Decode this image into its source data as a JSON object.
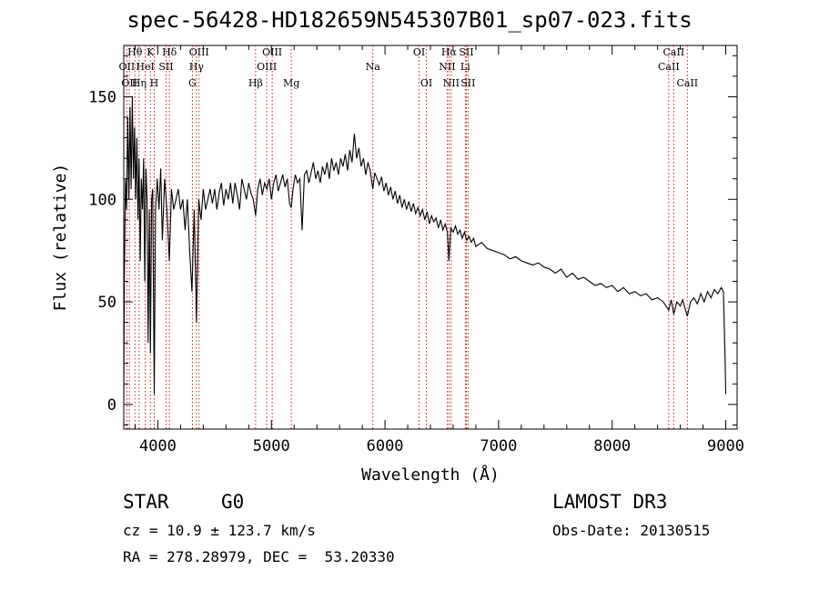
{
  "title": "spec-56428-HD182659N545307B01_sp07-023.fits",
  "info": {
    "class_label": "STAR",
    "subclass": "G0",
    "survey": "LAMOST DR3",
    "cz": "cz = 10.9 ± 123.7 km/s",
    "obs_date": "Obs-Date: 20130515",
    "coords": "RA = 278.28979, DEC =  53.20330"
  },
  "colors": {
    "line_markers": "#cc0000",
    "spectrum": "#000000",
    "axis": "#000000"
  },
  "chart_data": {
    "type": "line",
    "xlabel": "Wavelength (Å)",
    "ylabel": "Flux (relative)",
    "xlim": [
      3700,
      9100
    ],
    "ylim": [
      -12,
      175
    ],
    "xticks": [
      4000,
      5000,
      6000,
      7000,
      8000,
      9000
    ],
    "yticks": [
      0,
      50,
      100,
      150
    ],
    "series": [
      {
        "name": "flux",
        "points": [
          [
            3700,
            2
          ],
          [
            3705,
            60
          ],
          [
            3715,
            110
          ],
          [
            3725,
            95
          ],
          [
            3735,
            140
          ],
          [
            3745,
            100
          ],
          [
            3755,
            145
          ],
          [
            3765,
            105
          ],
          [
            3775,
            150
          ],
          [
            3785,
            110
          ],
          [
            3795,
            135
          ],
          [
            3805,
            100
          ],
          [
            3815,
            130
          ],
          [
            3825,
            90
          ],
          [
            3835,
            120
          ],
          [
            3845,
            70
          ],
          [
            3855,
            110
          ],
          [
            3865,
            95
          ],
          [
            3875,
            120
          ],
          [
            3885,
            60
          ],
          [
            3895,
            115
          ],
          [
            3905,
            100
          ],
          [
            3915,
            30
          ],
          [
            3925,
            95
          ],
          [
            3935,
            25
          ],
          [
            3945,
            100
          ],
          [
            3955,
            105
          ],
          [
            3968,
            5
          ],
          [
            3980,
            95
          ],
          [
            3995,
            110
          ],
          [
            4010,
            95
          ],
          [
            4025,
            115
          ],
          [
            4040,
            80
          ],
          [
            4060,
            110
          ],
          [
            4080,
            95
          ],
          [
            4101,
            70
          ],
          [
            4120,
            105
          ],
          [
            4140,
            95
          ],
          [
            4160,
            100
          ],
          [
            4180,
            105
          ],
          [
            4200,
            95
          ],
          [
            4220,
            100
          ],
          [
            4240,
            85
          ],
          [
            4260,
            100
          ],
          [
            4280,
            75
          ],
          [
            4300,
            55
          ],
          [
            4320,
            95
          ],
          [
            4340,
            40
          ],
          [
            4360,
            100
          ],
          [
            4380,
            90
          ],
          [
            4400,
            105
          ],
          [
            4420,
            95
          ],
          [
            4440,
            100
          ],
          [
            4460,
            105
          ],
          [
            4480,
            98
          ],
          [
            4500,
            105
          ],
          [
            4520,
            95
          ],
          [
            4540,
            103
          ],
          [
            4560,
            108
          ],
          [
            4580,
            97
          ],
          [
            4600,
            105
          ],
          [
            4620,
            100
          ],
          [
            4640,
            108
          ],
          [
            4660,
            98
          ],
          [
            4680,
            108
          ],
          [
            4700,
            102
          ],
          [
            4720,
            95
          ],
          [
            4740,
            110
          ],
          [
            4760,
            105
          ],
          [
            4780,
            100
          ],
          [
            4800,
            108
          ],
          [
            4820,
            103
          ],
          [
            4840,
            100
          ],
          [
            4861,
            92
          ],
          [
            4880,
            105
          ],
          [
            4900,
            110
          ],
          [
            4920,
            102
          ],
          [
            4940,
            108
          ],
          [
            4960,
            105
          ],
          [
            4980,
            110
          ],
          [
            5000,
            100
          ],
          [
            5020,
            108
          ],
          [
            5040,
            112
          ],
          [
            5060,
            104
          ],
          [
            5080,
            108
          ],
          [
            5100,
            112
          ],
          [
            5120,
            106
          ],
          [
            5140,
            110
          ],
          [
            5160,
            98
          ],
          [
            5175,
            96
          ],
          [
            5190,
            105
          ],
          [
            5210,
            112
          ],
          [
            5230,
            108
          ],
          [
            5250,
            110
          ],
          [
            5270,
            85
          ],
          [
            5290,
            112
          ],
          [
            5310,
            114
          ],
          [
            5330,
            108
          ],
          [
            5350,
            113
          ],
          [
            5370,
            118
          ],
          [
            5390,
            110
          ],
          [
            5410,
            114
          ],
          [
            5430,
            108
          ],
          [
            5450,
            116
          ],
          [
            5470,
            112
          ],
          [
            5490,
            118
          ],
          [
            5510,
            110
          ],
          [
            5530,
            120
          ],
          [
            5550,
            114
          ],
          [
            5570,
            118
          ],
          [
            5590,
            112
          ],
          [
            5610,
            120
          ],
          [
            5630,
            116
          ],
          [
            5650,
            122
          ],
          [
            5670,
            114
          ],
          [
            5690,
            124
          ],
          [
            5710,
            118
          ],
          [
            5730,
            132
          ],
          [
            5750,
            120
          ],
          [
            5770,
            125
          ],
          [
            5790,
            116
          ],
          [
            5810,
            120
          ],
          [
            5830,
            112
          ],
          [
            5850,
            118
          ],
          [
            5870,
            114
          ],
          [
            5893,
            105
          ],
          [
            5910,
            113
          ],
          [
            5930,
            110
          ],
          [
            5950,
            107
          ],
          [
            5970,
            111
          ],
          [
            5990,
            104
          ],
          [
            6010,
            108
          ],
          [
            6030,
            102
          ],
          [
            6050,
            106
          ],
          [
            6070,
            100
          ],
          [
            6090,
            104
          ],
          [
            6110,
            98
          ],
          [
            6130,
            102
          ],
          [
            6150,
            96
          ],
          [
            6170,
            100
          ],
          [
            6190,
            95
          ],
          [
            6210,
            99
          ],
          [
            6230,
            94
          ],
          [
            6250,
            98
          ],
          [
            6270,
            93
          ],
          [
            6290,
            96
          ],
          [
            6310,
            92
          ],
          [
            6330,
            95
          ],
          [
            6350,
            90
          ],
          [
            6370,
            94
          ],
          [
            6390,
            88
          ],
          [
            6410,
            92
          ],
          [
            6430,
            89
          ],
          [
            6450,
            91
          ],
          [
            6470,
            86
          ],
          [
            6490,
            90
          ],
          [
            6510,
            85
          ],
          [
            6530,
            88
          ],
          [
            6550,
            84
          ],
          [
            6563,
            70
          ],
          [
            6580,
            86
          ],
          [
            6600,
            84
          ],
          [
            6620,
            87
          ],
          [
            6640,
            83
          ],
          [
            6660,
            85
          ],
          [
            6680,
            81
          ],
          [
            6700,
            84
          ],
          [
            6720,
            80
          ],
          [
            6740,
            82
          ],
          [
            6760,
            79
          ],
          [
            6780,
            81
          ],
          [
            6800,
            77
          ],
          [
            6850,
            79
          ],
          [
            6900,
            76
          ],
          [
            6950,
            75
          ],
          [
            7000,
            74
          ],
          [
            7050,
            73
          ],
          [
            7100,
            71
          ],
          [
            7150,
            72
          ],
          [
            7200,
            70
          ],
          [
            7250,
            69
          ],
          [
            7300,
            68
          ],
          [
            7350,
            69
          ],
          [
            7400,
            67
          ],
          [
            7450,
            66
          ],
          [
            7500,
            64
          ],
          [
            7550,
            66
          ],
          [
            7600,
            62
          ],
          [
            7650,
            64
          ],
          [
            7700,
            61
          ],
          [
            7750,
            62
          ],
          [
            7800,
            60
          ],
          [
            7850,
            58
          ],
          [
            7900,
            59
          ],
          [
            7950,
            57
          ],
          [
            8000,
            58
          ],
          [
            8050,
            55
          ],
          [
            8100,
            57
          ],
          [
            8150,
            54
          ],
          [
            8200,
            55
          ],
          [
            8250,
            53
          ],
          [
            8300,
            54
          ],
          [
            8350,
            51
          ],
          [
            8400,
            52
          ],
          [
            8450,
            50
          ],
          [
            8498,
            46
          ],
          [
            8520,
            51
          ],
          [
            8542,
            44
          ],
          [
            8570,
            50
          ],
          [
            8600,
            48
          ],
          [
            8620,
            51
          ],
          [
            8662,
            43
          ],
          [
            8690,
            50
          ],
          [
            8720,
            52
          ],
          [
            8750,
            49
          ],
          [
            8780,
            54
          ],
          [
            8810,
            50
          ],
          [
            8840,
            55
          ],
          [
            8870,
            52
          ],
          [
            8900,
            56
          ],
          [
            8930,
            54
          ],
          [
            8960,
            57
          ],
          [
            8980,
            55
          ],
          [
            8995,
            20
          ],
          [
            9000,
            5
          ]
        ]
      }
    ],
    "spectral_lines": [
      {
        "wave": 3727,
        "label": "OII",
        "row": 2
      },
      {
        "wave": 3750,
        "label": "OII",
        "row": 3
      },
      {
        "wave": 3798,
        "label": "Hθ",
        "row": 1
      },
      {
        "wave": 3835,
        "label": "Hη",
        "row": 3
      },
      {
        "wave": 3889,
        "label": "HeI",
        "row": 2
      },
      {
        "wave": 3934,
        "label": "K",
        "row": 1
      },
      {
        "wave": 3968,
        "label": "H",
        "row": 3
      },
      {
        "wave": 4072,
        "label": "SII",
        "row": 2
      },
      {
        "wave": 4102,
        "label": "Hδ",
        "row": 1
      },
      {
        "wave": 4304,
        "label": "G",
        "row": 3
      },
      {
        "wave": 4340,
        "label": "Hγ",
        "row": 2
      },
      {
        "wave": 4363,
        "label": "OIII",
        "row": 1
      },
      {
        "wave": 4861,
        "label": "Hβ",
        "row": 3
      },
      {
        "wave": 4959,
        "label": "OIII",
        "row": 2
      },
      {
        "wave": 5007,
        "label": "OIII",
        "row": 1
      },
      {
        "wave": 5175,
        "label": "Mg",
        "row": 3
      },
      {
        "wave": 5893,
        "label": "Na",
        "row": 2
      },
      {
        "wave": 6300,
        "label": "OI",
        "row": 1
      },
      {
        "wave": 6364,
        "label": "OI",
        "row": 3
      },
      {
        "wave": 6548,
        "label": "NII",
        "row": 2
      },
      {
        "wave": 6563,
        "label": "Hα",
        "row": 1
      },
      {
        "wave": 6583,
        "label": "NII",
        "row": 3
      },
      {
        "wave": 6707,
        "label": "Li",
        "row": 2
      },
      {
        "wave": 6716,
        "label": "SII",
        "row": 1
      },
      {
        "wave": 6731,
        "label": "SII",
        "row": 3
      },
      {
        "wave": 8498,
        "label": "CaII",
        "row": 2
      },
      {
        "wave": 8542,
        "label": "CaII",
        "row": 1
      },
      {
        "wave": 8662,
        "label": "CaII",
        "row": 3
      }
    ]
  }
}
